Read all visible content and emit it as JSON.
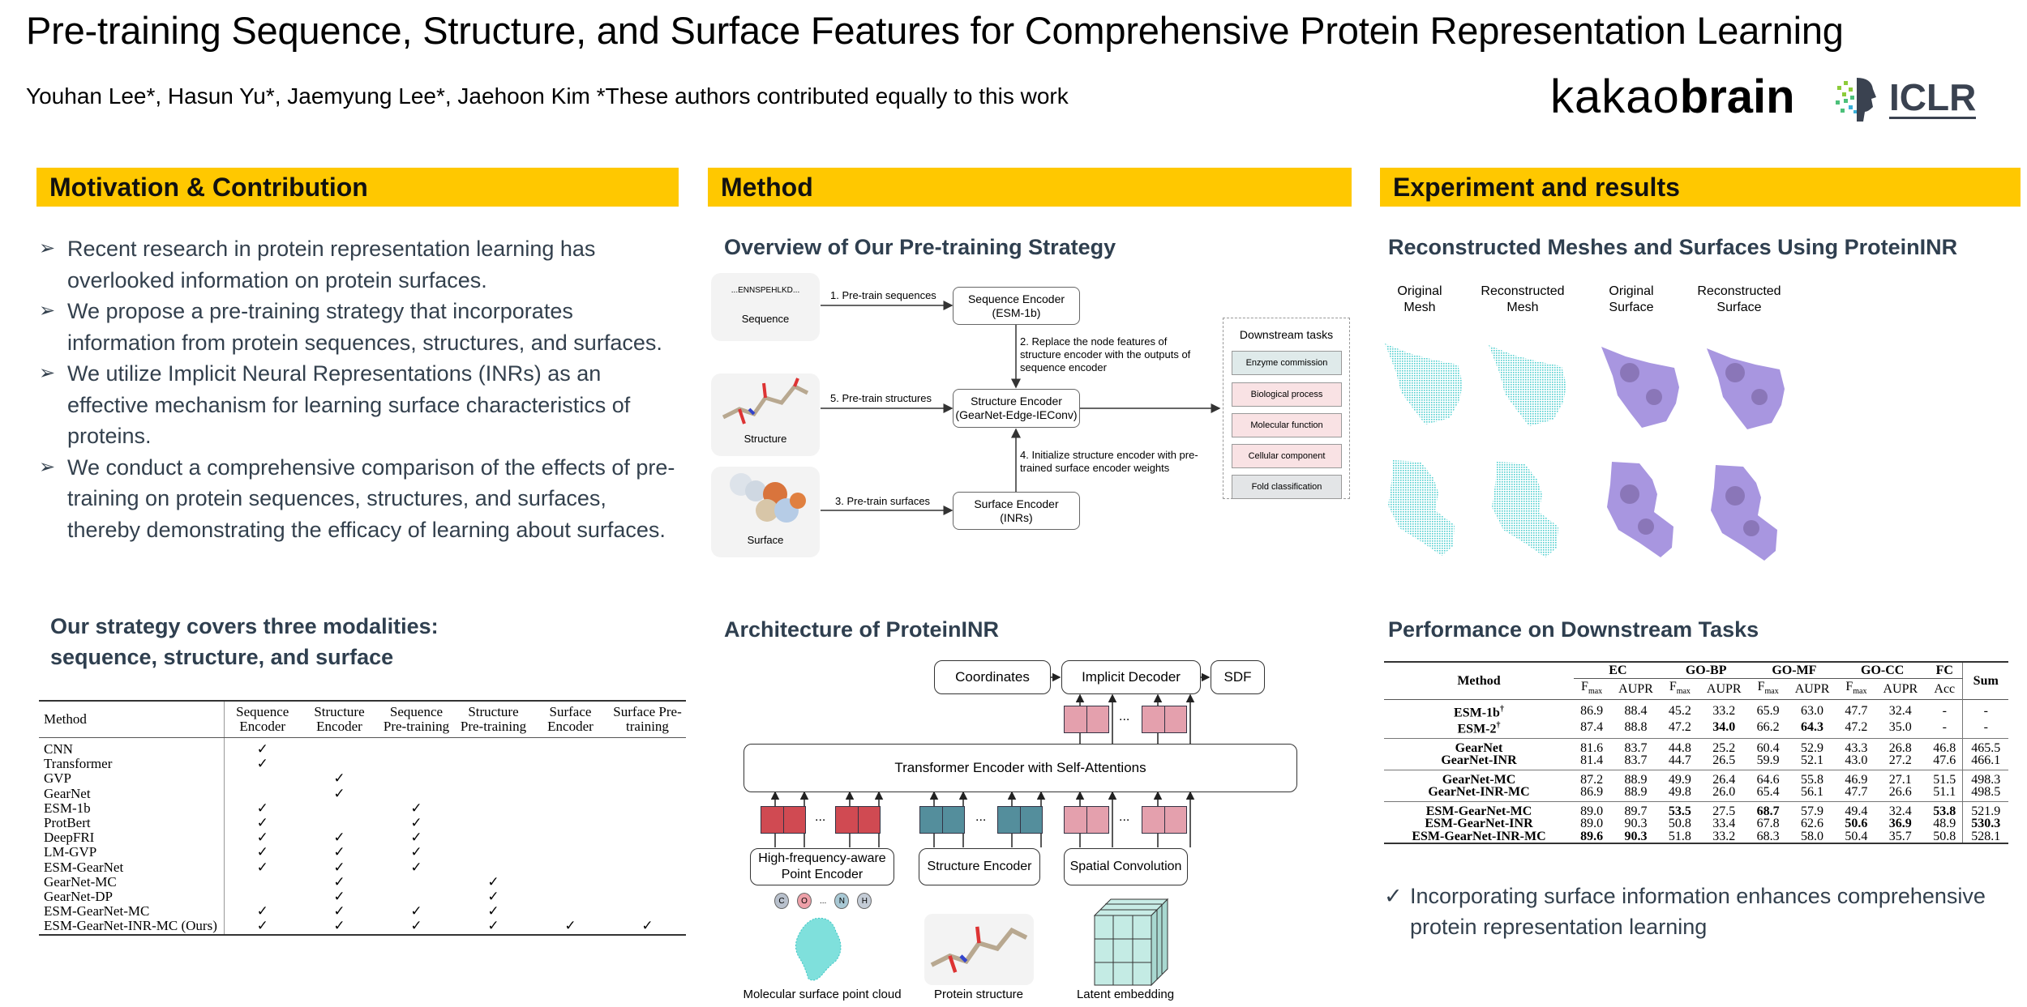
{
  "header": {
    "title": "Pre-training Sequence, Structure, and Surface Features for Comprehensive Protein Representation Learning",
    "authors": "Youhan Lee*, Hasun Yu*, Jaemyung Lee*, Jaehoon Kim *These authors contributed equally to this work",
    "logos": {
      "kakao_light": "kakao",
      "kakao_bold": "brain",
      "iclr": "ICLR"
    }
  },
  "colors": {
    "section_bar": "#FFC800",
    "text": "#33404d",
    "mesh": "#4fcfcf",
    "surface": "#a48fdc"
  },
  "motivation": {
    "heading": "Motivation & Contribution",
    "bullet_icon": "arrowhead-icon",
    "bullets": [
      "Recent research in protein representation learning has overlooked information on protein surfaces.",
      "We propose a pre-training strategy that incorporates information from protein sequences, structures, and surfaces.",
      "We utilize Implicit Neural Representations (INRs) as an effective mechanism for learning surface characteristics of proteins.",
      "We conduct a comprehensive comparison of the effects of pre-training on protein sequences, structures, and surfaces, thereby demonstrating the efficacy of learning about surfaces."
    ],
    "modalities_line1": "Our strategy covers three modalities:",
    "modalities_line2": "sequence, structure, and surface",
    "table": {
      "columns": [
        "Method",
        "Sequence Encoder",
        "Structure Encoder",
        "Sequence Pre-training",
        "Structure Pre-training",
        "Surface Encoder",
        "Surface Pre-training"
      ],
      "check": "✓",
      "rows": [
        {
          "method": "CNN",
          "flags": [
            1,
            0,
            0,
            0,
            0,
            0
          ]
        },
        {
          "method": "Transformer",
          "flags": [
            1,
            0,
            0,
            0,
            0,
            0
          ]
        },
        {
          "method": "GVP",
          "flags": [
            0,
            1,
            0,
            0,
            0,
            0
          ]
        },
        {
          "method": "GearNet",
          "flags": [
            0,
            1,
            0,
            0,
            0,
            0
          ]
        },
        {
          "method": "ESM-1b",
          "flags": [
            1,
            0,
            1,
            0,
            0,
            0
          ]
        },
        {
          "method": "ProtBert",
          "flags": [
            1,
            0,
            1,
            0,
            0,
            0
          ]
        },
        {
          "method": "DeepFRI",
          "flags": [
            1,
            1,
            1,
            0,
            0,
            0
          ]
        },
        {
          "method": "LM-GVP",
          "flags": [
            1,
            1,
            1,
            0,
            0,
            0
          ]
        },
        {
          "method": "ESM-GearNet",
          "flags": [
            1,
            1,
            1,
            0,
            0,
            0
          ]
        },
        {
          "method": "GearNet-MC",
          "flags": [
            0,
            1,
            0,
            1,
            0,
            0
          ]
        },
        {
          "method": "GearNet-DP",
          "flags": [
            0,
            1,
            0,
            1,
            0,
            0
          ]
        },
        {
          "method": "ESM-GearNet-MC",
          "flags": [
            1,
            1,
            1,
            1,
            0,
            0
          ]
        },
        {
          "method": "ESM-GearNet-INR-MC (Ours)",
          "flags": [
            1,
            1,
            1,
            1,
            1,
            1
          ]
        }
      ]
    }
  },
  "method": {
    "heading": "Method",
    "overview_title": "Overview of Our Pre-training Strategy",
    "overview": {
      "sequence_text": "...ENNSPEHLKD...",
      "sequence_label": "Sequence",
      "structure_label": "Structure",
      "surface_label": "Surface",
      "seq_encoder": "Sequence Encoder",
      "seq_encoder_sub": "(ESM-1b)",
      "struct_encoder": "Structure Encoder",
      "struct_encoder_sub": "(GearNet-Edge-IEConv)",
      "surf_encoder": "Surface Encoder",
      "surf_encoder_sub": "(INRs)",
      "step1": "1. Pre-train sequences",
      "step2": "2. Replace the node features of structure encoder with the outputs of sequence encoder",
      "step3": "3. Pre-train surfaces",
      "step4": "4. Initialize structure encoder with pre-trained surface encoder weights",
      "step5": "5. Pre-train structures",
      "downstream_title": "Downstream tasks",
      "tasks": [
        "Enzyme commission",
        "Biological process",
        "Molecular function",
        "Cellular component",
        "Fold classification"
      ]
    },
    "arch_title": "Architecture of ProteinINR",
    "arch": {
      "coordinates": "Coordinates",
      "decoder": "Implicit Decoder",
      "sdf": "SDF",
      "transformer": "Transformer Encoder with Self-Attentions",
      "point_encoder": "High-frequency-aware Point Encoder",
      "structure_encoder": "Structure Encoder",
      "spatial_conv": "Spatial Convolution",
      "ellipsis": "...",
      "atoms": [
        "C",
        "O",
        "N",
        "H"
      ],
      "cap_points": "Molecular surface point cloud",
      "cap_structure": "Protein structure",
      "cap_latent": "Latent embedding"
    }
  },
  "results": {
    "heading": "Experiment and results",
    "recon_title": "Reconstructed Meshes and Surfaces Using ProteinINR",
    "recon_labels": [
      [
        "Original",
        "Mesh"
      ],
      [
        "Reconstructed",
        "Mesh"
      ],
      [
        "Original",
        "Surface"
      ],
      [
        "Reconstructed",
        "Surface"
      ]
    ],
    "perf_title": "Performance on Downstream Tasks",
    "perf_table": {
      "method_header": "Method",
      "groups": [
        "EC",
        "GO-BP",
        "GO-MF",
        "GO-CC",
        "FC",
        "Sum"
      ],
      "sub_main": "F",
      "sub_sub": "max",
      "aupr": "AUPR",
      "acc": "Acc",
      "dagger": "†",
      "row_groups": [
        [
          {
            "method": "ESM-1b",
            "dagger": true,
            "values": [
              "86.9",
              "88.4",
              "45.2",
              "33.2",
              "65.9",
              "63.0",
              "47.7",
              "32.4",
              "-",
              "-"
            ],
            "bold": []
          },
          {
            "method": "ESM-2",
            "dagger": true,
            "values": [
              "87.4",
              "88.8",
              "47.2",
              "34.0",
              "66.2",
              "64.3",
              "47.2",
              "35.0",
              "-",
              "-"
            ],
            "bold": [
              3,
              5
            ]
          }
        ],
        [
          {
            "method": "GearNet",
            "values": [
              "81.6",
              "83.7",
              "44.8",
              "25.2",
              "60.4",
              "52.9",
              "43.3",
              "26.8",
              "46.8",
              "465.5"
            ],
            "bold": []
          },
          {
            "method": "GearNet-INR",
            "values": [
              "81.4",
              "83.7",
              "44.7",
              "26.5",
              "59.9",
              "52.1",
              "43.0",
              "27.2",
              "47.6",
              "466.1"
            ],
            "bold": []
          }
        ],
        [
          {
            "method": "GearNet-MC",
            "values": [
              "87.2",
              "88.9",
              "49.9",
              "26.4",
              "64.6",
              "55.8",
              "46.9",
              "27.1",
              "51.5",
              "498.3"
            ],
            "bold": []
          },
          {
            "method": "GearNet-INR-MC",
            "values": [
              "86.9",
              "88.9",
              "49.8",
              "26.0",
              "65.4",
              "56.1",
              "47.7",
              "26.6",
              "51.1",
              "498.5"
            ],
            "bold": []
          }
        ],
        [
          {
            "method": "ESM-GearNet-MC",
            "values": [
              "89.0",
              "89.7",
              "53.5",
              "27.5",
              "68.7",
              "57.9",
              "49.4",
              "32.4",
              "53.8",
              "521.9"
            ],
            "bold": [
              2,
              4,
              8
            ]
          },
          {
            "method": "ESM-GearNet-INR",
            "values": [
              "89.0",
              "90.3",
              "50.8",
              "33.4",
              "67.8",
              "62.6",
              "50.6",
              "36.9",
              "48.9",
              "530.3"
            ],
            "bold": [
              6,
              7,
              9
            ]
          },
          {
            "method": "ESM-GearNet-INR-MC",
            "values": [
              "89.6",
              "90.3",
              "51.8",
              "33.2",
              "68.3",
              "58.0",
              "50.4",
              "35.7",
              "50.8",
              "528.1"
            ],
            "bold": [
              0,
              1
            ]
          }
        ]
      ]
    },
    "conclusion": "Incorporating surface information enhances comprehensive protein representation learning",
    "conclusion_icon": "check-icon"
  }
}
